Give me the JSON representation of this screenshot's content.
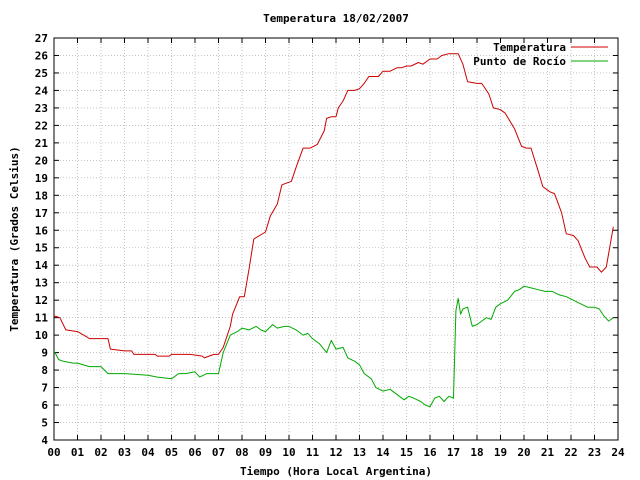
{
  "chart_data": {
    "type": "line",
    "title": "Temperatura 18/02/2007",
    "xlabel": "Tiempo (Hora Local Argentina)",
    "ylabel": "Temperatura (Grados Celsius)",
    "xlim": [
      0,
      24
    ],
    "ylim": [
      4,
      27
    ],
    "x_ticks": [
      "00",
      "01",
      "02",
      "03",
      "04",
      "05",
      "06",
      "07",
      "08",
      "09",
      "10",
      "11",
      "12",
      "13",
      "14",
      "15",
      "16",
      "17",
      "18",
      "19",
      "20",
      "21",
      "22",
      "23",
      "24"
    ],
    "y_ticks": [
      4,
      5,
      6,
      7,
      8,
      9,
      10,
      11,
      12,
      13,
      14,
      15,
      16,
      17,
      18,
      19,
      20,
      21,
      22,
      23,
      24,
      25,
      26,
      27
    ],
    "grid": true,
    "legend_position": "top-right",
    "series": [
      {
        "name": "Temperatura",
        "color": "#cc0000",
        "x": [
          0.0,
          0.25,
          0.5,
          1.0,
          1.4,
          1.5,
          2.3,
          2.4,
          3.0,
          3.3,
          3.4,
          4.3,
          4.4,
          4.9,
          5.0,
          5.8,
          6.3,
          6.4,
          6.8,
          7.0,
          7.2,
          7.5,
          7.6,
          7.9,
          8.1,
          8.3,
          8.5,
          9.0,
          9.2,
          9.5,
          9.7,
          10.1,
          10.3,
          10.6,
          10.9,
          11.2,
          11.5,
          11.6,
          11.8,
          12.0,
          12.1,
          12.3,
          12.5,
          12.8,
          13.0,
          13.2,
          13.4,
          13.6,
          13.8,
          14.0,
          14.3,
          14.6,
          14.8,
          15.0,
          15.2,
          15.5,
          15.7,
          16.0,
          16.3,
          16.5,
          16.8,
          17.0,
          17.2,
          17.4,
          17.6,
          18.0,
          18.2,
          18.5,
          18.7,
          19.0,
          19.2,
          19.6,
          19.9,
          20.1,
          20.3,
          20.6,
          20.8,
          21.1,
          21.3,
          21.6,
          21.8,
          22.1,
          22.3,
          22.6,
          22.8,
          23.1,
          23.3,
          23.5,
          23.8
        ],
        "values": [
          11.1,
          11.0,
          10.3,
          10.2,
          9.9,
          9.8,
          9.8,
          9.2,
          9.1,
          9.1,
          8.9,
          8.9,
          8.8,
          8.8,
          8.9,
          8.9,
          8.8,
          8.7,
          8.9,
          8.9,
          9.3,
          10.5,
          11.2,
          12.2,
          12.2,
          13.8,
          15.5,
          15.9,
          16.8,
          17.5,
          18.6,
          18.8,
          19.6,
          20.7,
          20.7,
          20.9,
          21.7,
          22.4,
          22.5,
          22.5,
          23.0,
          23.4,
          24.0,
          24.0,
          24.1,
          24.4,
          24.8,
          24.8,
          24.8,
          25.1,
          25.1,
          25.3,
          25.3,
          25.4,
          25.4,
          25.6,
          25.5,
          25.8,
          25.8,
          26.0,
          26.1,
          26.1,
          26.1,
          25.5,
          24.5,
          24.4,
          24.4,
          23.8,
          23.0,
          22.9,
          22.7,
          21.8,
          20.8,
          20.7,
          20.7,
          19.4,
          18.5,
          18.2,
          18.1,
          17.0,
          15.8,
          15.7,
          15.4,
          14.4,
          13.9,
          13.9,
          13.6,
          13.9,
          16.2
        ]
      },
      {
        "name": "Punto de Rocío",
        "color": "#00aa00",
        "x": [
          0.0,
          0.2,
          0.4,
          0.8,
          1.0,
          1.5,
          2.0,
          2.3,
          2.7,
          3.0,
          4.0,
          4.4,
          5.0,
          5.3,
          5.6,
          6.0,
          6.2,
          6.5,
          6.8,
          7.0,
          7.2,
          7.5,
          7.8,
          8.0,
          8.3,
          8.6,
          8.8,
          9.0,
          9.3,
          9.5,
          9.8,
          10.0,
          10.3,
          10.6,
          10.8,
          11.0,
          11.3,
          11.6,
          11.8,
          12.0,
          12.3,
          12.5,
          12.8,
          13.0,
          13.2,
          13.5,
          13.7,
          14.0,
          14.3,
          14.5,
          14.7,
          14.9,
          15.1,
          15.3,
          15.6,
          15.8,
          16.0,
          16.2,
          16.4,
          16.6,
          16.8,
          17.0,
          17.1,
          17.2,
          17.3,
          17.4,
          17.6,
          17.8,
          18.0,
          18.2,
          18.4,
          18.6,
          18.8,
          19.0,
          19.3,
          19.6,
          19.8,
          20.0,
          20.3,
          20.6,
          20.9,
          21.2,
          21.5,
          21.8,
          22.1,
          22.4,
          22.7,
          23.0,
          23.2,
          23.4,
          23.6,
          23.8
        ],
        "values": [
          9.1,
          8.6,
          8.5,
          8.4,
          8.4,
          8.2,
          8.2,
          7.8,
          7.8,
          7.8,
          7.7,
          7.6,
          7.5,
          7.8,
          7.8,
          7.9,
          7.6,
          7.8,
          7.8,
          7.8,
          9.0,
          10.0,
          10.2,
          10.4,
          10.3,
          10.5,
          10.3,
          10.2,
          10.6,
          10.4,
          10.5,
          10.5,
          10.3,
          10.0,
          10.1,
          9.8,
          9.5,
          9.0,
          9.7,
          9.2,
          9.3,
          8.7,
          8.5,
          8.3,
          7.8,
          7.5,
          7.0,
          6.8,
          6.9,
          6.7,
          6.5,
          6.3,
          6.5,
          6.4,
          6.2,
          6.0,
          5.9,
          6.4,
          6.5,
          6.2,
          6.5,
          6.4,
          11.4,
          12.1,
          11.2,
          11.5,
          11.6,
          10.5,
          10.6,
          10.8,
          11.0,
          10.9,
          11.6,
          11.8,
          12.0,
          12.5,
          12.6,
          12.8,
          12.7,
          12.6,
          12.5,
          12.5,
          12.3,
          12.2,
          12.0,
          11.8,
          11.6,
          11.6,
          11.5,
          11.1,
          10.8,
          11.0
        ]
      }
    ]
  }
}
